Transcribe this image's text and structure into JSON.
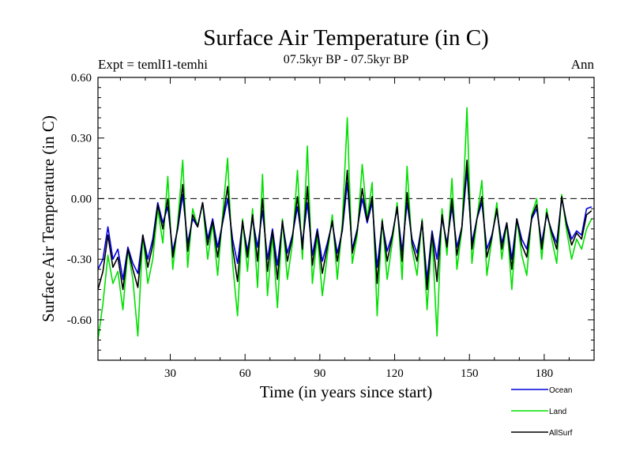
{
  "chart_data": {
    "type": "line",
    "title": "Surface Air Temperature (in C)",
    "subtitle": "07.5kyr BP - 07.5kyr BP",
    "left_label": "Expt = temlI1-temhi",
    "right_label": "Ann",
    "xlabel": "Time (in years since start)",
    "ylabel": "Surface Air Temperature (in C)",
    "xlim": [
      1,
      200
    ],
    "ylim": [
      -0.8,
      0.6
    ],
    "xticks": [
      30,
      60,
      90,
      120,
      150,
      180
    ],
    "xtick_labels": [
      "30",
      "60",
      "90",
      "120",
      "150",
      "180"
    ],
    "yticks": [
      0.6,
      0.3,
      0.0,
      -0.3,
      -0.6
    ],
    "ytick_labels": [
      "0.60",
      "0.30",
      "0.00",
      "-0.30",
      "-0.60"
    ],
    "zero_line": 0.0,
    "legend": {
      "placement": "bottom-right"
    },
    "series": [
      {
        "name": "Land",
        "color": "#00e000",
        "x": [
          1,
          3,
          5,
          7,
          9,
          11,
          13,
          15,
          17,
          19,
          21,
          23,
          25,
          27,
          29,
          31,
          33,
          35,
          37,
          39,
          41,
          43,
          45,
          47,
          49,
          51,
          53,
          55,
          57,
          59,
          61,
          63,
          65,
          67,
          69,
          71,
          73,
          75,
          77,
          79,
          81,
          83,
          85,
          87,
          89,
          91,
          93,
          95,
          97,
          99,
          101,
          103,
          105,
          107,
          109,
          111,
          113,
          115,
          117,
          119,
          121,
          123,
          125,
          127,
          129,
          131,
          133,
          135,
          137,
          139,
          141,
          143,
          145,
          147,
          149,
          151,
          153,
          155,
          157,
          159,
          161,
          163,
          165,
          167,
          169,
          171,
          173,
          175,
          177,
          179,
          181,
          183,
          185,
          187,
          189,
          191,
          193,
          195,
          197,
          199
        ],
        "values": [
          -0.7,
          -0.52,
          -0.28,
          -0.42,
          -0.36,
          -0.55,
          -0.25,
          -0.4,
          -0.68,
          -0.18,
          -0.42,
          -0.3,
          -0.05,
          -0.22,
          0.11,
          -0.35,
          -0.12,
          0.19,
          -0.34,
          -0.05,
          -0.14,
          -0.02,
          -0.3,
          -0.12,
          -0.38,
          -0.08,
          0.2,
          -0.32,
          -0.58,
          -0.1,
          -0.36,
          -0.05,
          -0.44,
          0.12,
          -0.48,
          -0.18,
          -0.54,
          -0.1,
          -0.4,
          -0.22,
          0.14,
          -0.3,
          0.26,
          -0.42,
          -0.18,
          -0.48,
          -0.28,
          -0.08,
          -0.4,
          -0.12,
          0.4,
          -0.32,
          -0.18,
          0.17,
          -0.1,
          0.08,
          -0.58,
          -0.1,
          -0.4,
          -0.22,
          -0.02,
          -0.4,
          0.16,
          -0.25,
          -0.38,
          -0.1,
          -0.55,
          -0.18,
          -0.68,
          -0.05,
          -0.28,
          0.1,
          -0.35,
          -0.15,
          0.45,
          -0.32,
          -0.1,
          0.09,
          -0.38,
          -0.2,
          -0.02,
          -0.3,
          -0.12,
          -0.45,
          -0.1,
          -0.28,
          -0.38,
          -0.08,
          0.0,
          -0.3,
          -0.05,
          -0.2,
          -0.32,
          0.02,
          -0.16,
          -0.3,
          -0.2,
          -0.25,
          -0.15,
          -0.1
        ]
      },
      {
        "name": "Ocean",
        "color": "#0000e0",
        "x": [
          1,
          3,
          5,
          7,
          9,
          11,
          13,
          15,
          17,
          19,
          21,
          23,
          25,
          27,
          29,
          31,
          33,
          35,
          37,
          39,
          41,
          43,
          45,
          47,
          49,
          51,
          53,
          55,
          57,
          59,
          61,
          63,
          65,
          67,
          69,
          71,
          73,
          75,
          77,
          79,
          81,
          83,
          85,
          87,
          89,
          91,
          93,
          95,
          97,
          99,
          101,
          103,
          105,
          107,
          109,
          111,
          113,
          115,
          117,
          119,
          121,
          123,
          125,
          127,
          129,
          131,
          133,
          135,
          137,
          139,
          141,
          143,
          145,
          147,
          149,
          151,
          153,
          155,
          157,
          159,
          161,
          163,
          165,
          167,
          169,
          171,
          173,
          175,
          177,
          179,
          181,
          183,
          185,
          187,
          189,
          191,
          193,
          195,
          197,
          199
        ],
        "values": [
          -0.35,
          -0.3,
          -0.14,
          -0.3,
          -0.25,
          -0.4,
          -0.24,
          -0.32,
          -0.37,
          -0.18,
          -0.3,
          -0.2,
          -0.02,
          -0.12,
          -0.04,
          -0.26,
          -0.15,
          0.02,
          -0.22,
          -0.1,
          -0.14,
          -0.02,
          -0.2,
          -0.1,
          -0.24,
          -0.12,
          0.0,
          -0.2,
          -0.32,
          -0.12,
          -0.26,
          -0.1,
          -0.24,
          -0.06,
          -0.3,
          -0.15,
          -0.33,
          -0.12,
          -0.27,
          -0.18,
          -0.04,
          -0.22,
          -0.02,
          -0.28,
          -0.15,
          -0.31,
          -0.22,
          -0.12,
          -0.27,
          -0.16,
          0.08,
          -0.25,
          -0.15,
          0.0,
          -0.12,
          -0.02,
          -0.34,
          -0.12,
          -0.26,
          -0.18,
          -0.05,
          -0.26,
          -0.02,
          -0.2,
          -0.27,
          -0.12,
          -0.4,
          -0.16,
          -0.3,
          -0.1,
          -0.22,
          -0.04,
          -0.24,
          -0.14,
          0.14,
          -0.22,
          -0.1,
          -0.02,
          -0.25,
          -0.18,
          -0.06,
          -0.22,
          -0.12,
          -0.3,
          -0.1,
          -0.2,
          -0.25,
          -0.1,
          -0.05,
          -0.22,
          -0.08,
          -0.16,
          -0.22,
          0.0,
          -0.12,
          -0.2,
          -0.16,
          -0.18,
          -0.05,
          -0.04
        ]
      },
      {
        "name": "AllSurf",
        "color": "#000000",
        "x": [
          1,
          3,
          5,
          7,
          9,
          11,
          13,
          15,
          17,
          19,
          21,
          23,
          25,
          27,
          29,
          31,
          33,
          35,
          37,
          39,
          41,
          43,
          45,
          47,
          49,
          51,
          53,
          55,
          57,
          59,
          61,
          63,
          65,
          67,
          69,
          71,
          73,
          75,
          77,
          79,
          81,
          83,
          85,
          87,
          89,
          91,
          93,
          95,
          97,
          99,
          101,
          103,
          105,
          107,
          109,
          111,
          113,
          115,
          117,
          119,
          121,
          123,
          125,
          127,
          129,
          131,
          133,
          135,
          137,
          139,
          141,
          143,
          145,
          147,
          149,
          151,
          153,
          155,
          157,
          159,
          161,
          163,
          165,
          167,
          169,
          171,
          173,
          175,
          177,
          179,
          181,
          183,
          185,
          187,
          189,
          191,
          193,
          195,
          197,
          199
        ],
        "values": [
          -0.45,
          -0.36,
          -0.18,
          -0.34,
          -0.29,
          -0.45,
          -0.25,
          -0.35,
          -0.44,
          -0.18,
          -0.34,
          -0.23,
          -0.03,
          -0.15,
          0.0,
          -0.29,
          -0.14,
          0.07,
          -0.26,
          -0.08,
          -0.14,
          -0.02,
          -0.23,
          -0.11,
          -0.29,
          -0.11,
          0.06,
          -0.24,
          -0.41,
          -0.11,
          -0.29,
          -0.08,
          -0.31,
          0.0,
          -0.36,
          -0.16,
          -0.4,
          -0.11,
          -0.31,
          -0.19,
          0.01,
          -0.25,
          0.06,
          -0.33,
          -0.16,
          -0.37,
          -0.24,
          -0.11,
          -0.31,
          -0.15,
          0.14,
          -0.27,
          -0.16,
          0.05,
          -0.11,
          0.01,
          -0.42,
          -0.11,
          -0.31,
          -0.19,
          -0.04,
          -0.31,
          0.03,
          -0.22,
          -0.31,
          -0.11,
          -0.45,
          -0.17,
          -0.41,
          -0.08,
          -0.24,
          0.0,
          -0.28,
          -0.14,
          0.19,
          -0.25,
          -0.1,
          0.01,
          -0.29,
          -0.19,
          -0.05,
          -0.25,
          -0.12,
          -0.35,
          -0.1,
          -0.23,
          -0.29,
          -0.09,
          -0.03,
          -0.25,
          -0.07,
          -0.17,
          -0.25,
          0.01,
          -0.13,
          -0.23,
          -0.17,
          -0.2,
          -0.08,
          -0.06
        ]
      }
    ]
  }
}
